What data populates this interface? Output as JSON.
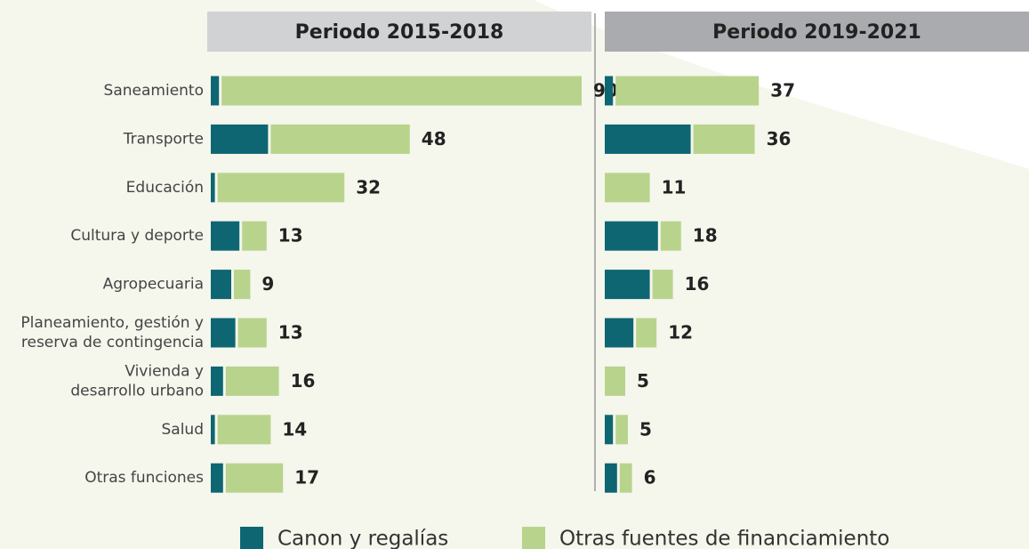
{
  "chart_data": [
    {
      "type": "bar",
      "orientation": "horizontal",
      "stacked": true,
      "title": "Periodo 2015-2018",
      "categories": [
        [
          "Saneamiento"
        ],
        [
          "Transporte"
        ],
        [
          "Educación"
        ],
        [
          "Cultura y deporte"
        ],
        [
          "Agropecuaria"
        ],
        [
          "Planeamiento, gestión y",
          "reserva de contingencia"
        ],
        [
          "Vivienda y",
          "desarrollo urbano"
        ],
        [
          "Salud"
        ],
        [
          "Otras funciones"
        ]
      ],
      "series": [
        {
          "name": "Canon y regalías",
          "color": "#0e6673",
          "values": [
            2,
            14,
            1,
            7,
            5,
            6,
            3,
            1,
            3
          ]
        },
        {
          "name": "Otras fuentes de financiamiento",
          "color": "#b8d48c",
          "values": [
            88,
            34,
            31,
            6,
            4,
            7,
            13,
            13,
            14
          ]
        }
      ],
      "totals": [
        90,
        48,
        32,
        13,
        9,
        13,
        16,
        14,
        17
      ]
    },
    {
      "type": "bar",
      "orientation": "horizontal",
      "stacked": true,
      "title": "Periodo 2019-2021",
      "series": [
        {
          "name": "Canon y regalías",
          "color": "#0e6673",
          "values": [
            2,
            21,
            0,
            13,
            11,
            7,
            0,
            2,
            3
          ]
        },
        {
          "name": "Otras fuentes de financiamiento",
          "color": "#b8d48c",
          "values": [
            35,
            15,
            11,
            5,
            5,
            5,
            5,
            3,
            3
          ]
        }
      ],
      "totals": [
        37,
        36,
        11,
        18,
        16,
        12,
        5,
        5,
        6
      ]
    }
  ]
}
